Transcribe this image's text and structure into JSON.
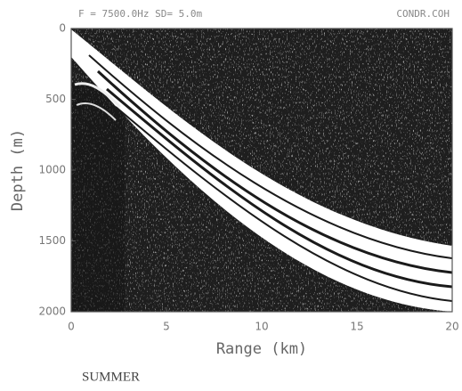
{
  "chart_data": {
    "type": "field",
    "header_left": "F = 7500.0Hz  SD= 5.0m",
    "header_right": "CONDR.COH",
    "x_label": "Range (km)",
    "y_label": "Depth (m)",
    "caption": "SUMMER",
    "xlim": [
      0,
      20
    ],
    "xticks": [
      0,
      5,
      10,
      15,
      20
    ],
    "ylim": [
      0,
      2000
    ],
    "yticks": [
      0,
      500,
      1000,
      1500,
      2000
    ],
    "y_inverted": true
  }
}
